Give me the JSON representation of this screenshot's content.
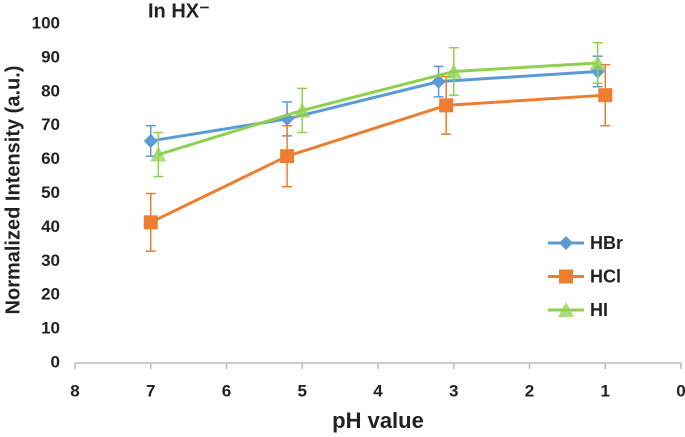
{
  "chart_data": {
    "type": "line",
    "title": "In HX⁻",
    "x_label": "pH value",
    "y_label": "Normalized Intensity (a.u.)",
    "xlim": [
      8,
      0
    ],
    "xticks": [
      8,
      7,
      6,
      5,
      4,
      3,
      2,
      1,
      0
    ],
    "ylim": [
      0,
      100
    ],
    "yticks": [
      0,
      10,
      20,
      30,
      40,
      50,
      60,
      70,
      80,
      90,
      100
    ],
    "grid": false,
    "legend": "lower right",
    "series": [
      {
        "name": "HBr",
        "color": "#5b9bd5",
        "marker": "diamond",
        "x": [
          7,
          5.2,
          3.2,
          1.1
        ],
        "values": [
          65.5,
          72,
          83,
          86
        ],
        "errors": [
          4.5,
          5,
          4.5,
          4.5
        ]
      },
      {
        "name": "HCl",
        "color": "#ed7d31",
        "marker": "square",
        "x": [
          7,
          5.2,
          3.1,
          1
        ],
        "values": [
          41.5,
          61,
          76,
          79
        ],
        "errors": [
          8.5,
          9,
          8.5,
          9
        ]
      },
      {
        "name": "HI",
        "color": "#8fd14f",
        "marker": "triangle",
        "x": [
          6.9,
          5.0,
          3.0,
          1.1
        ],
        "values": [
          61.5,
          74.5,
          86,
          88.5
        ],
        "errors": [
          6.5,
          6.5,
          7,
          6
        ]
      }
    ]
  }
}
